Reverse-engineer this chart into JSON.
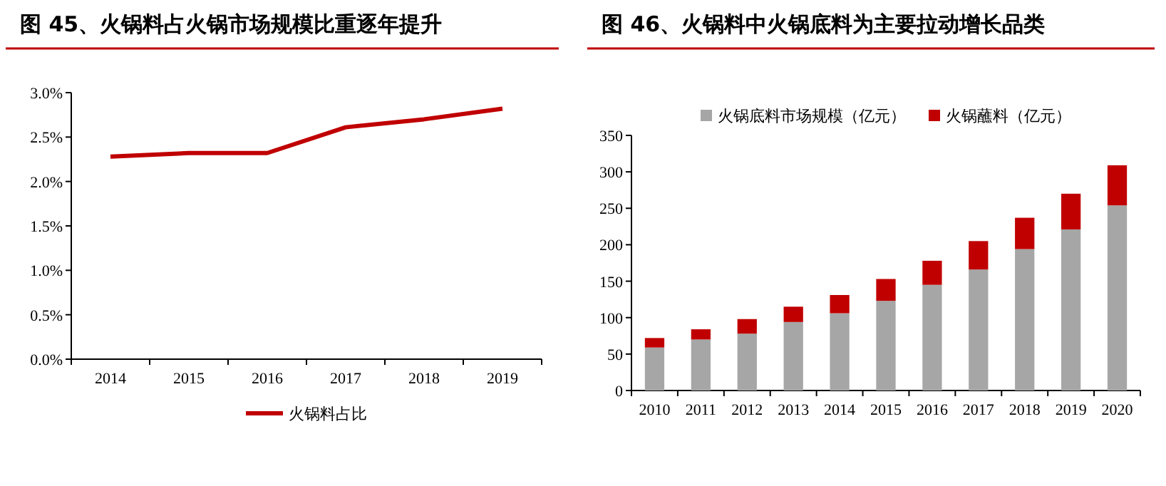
{
  "chart_data": [
    {
      "type": "line",
      "title": "图 45、火锅料占火锅市场规模比重逐年提升",
      "categories": [
        "2014",
        "2015",
        "2016",
        "2017",
        "2018",
        "2019"
      ],
      "series": [
        {
          "name": "火锅料占比",
          "color": "#c00000",
          "values": [
            2.28,
            2.32,
            2.32,
            2.61,
            2.7,
            2.82
          ]
        }
      ],
      "ylim": [
        0,
        3.0
      ],
      "yticks": [
        {
          "value": 0,
          "label": "0.0%"
        },
        {
          "value": 0.5,
          "label": "0.5%"
        },
        {
          "value": 1.0,
          "label": "1.0%"
        },
        {
          "value": 1.5,
          "label": "1.5%"
        },
        {
          "value": 2.0,
          "label": "2.0%"
        },
        {
          "value": 2.5,
          "label": "2.5%"
        },
        {
          "value": 3.0,
          "label": "3.0%"
        }
      ],
      "legend": "bottom",
      "grid": false,
      "marker": "none",
      "line_style": "solid"
    },
    {
      "type": "bar",
      "title": "图 46、火锅料中火锅底料为主要拉动增长品类",
      "categories": [
        "2010",
        "2011",
        "2012",
        "2013",
        "2014",
        "2015",
        "2016",
        "2017",
        "2018",
        "2019",
        "2020"
      ],
      "stacked": true,
      "series": [
        {
          "name": "火锅底料市场规模（亿元）",
          "color": "#a6a6a6",
          "values": [
            59,
            70,
            78,
            94,
            106,
            123,
            145,
            166,
            194,
            221,
            254
          ]
        },
        {
          "name": "火锅蘸料（亿元）",
          "color": "#c00000",
          "values": [
            13,
            14,
            20,
            21,
            25,
            30,
            33,
            39,
            43,
            49,
            55
          ]
        }
      ],
      "ylim": [
        0,
        350
      ],
      "yticks": [
        0,
        50,
        100,
        150,
        200,
        250,
        300,
        350
      ],
      "legend": "top",
      "grid": false
    }
  ]
}
